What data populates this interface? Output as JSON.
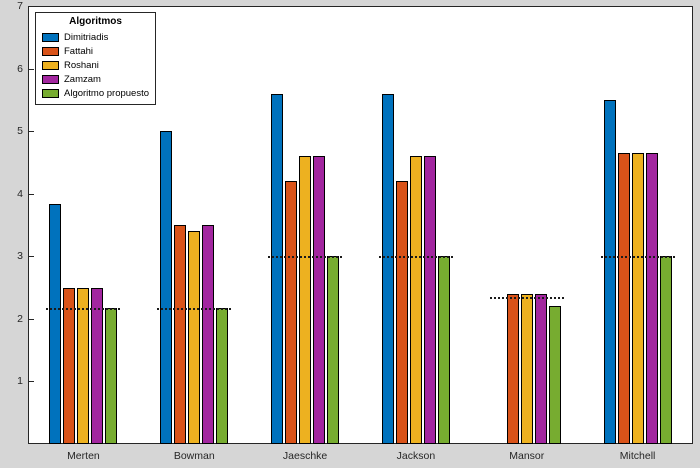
{
  "figure": {
    "background": "#d6d6d6",
    "plot_background": "#ffffff",
    "axis_color": "#262626"
  },
  "legend": {
    "title": "Algoritmos"
  },
  "chart_data": {
    "type": "bar",
    "title": "",
    "xlabel": "",
    "ylabel": "",
    "categories": [
      "Merten",
      "Bowman",
      "Jaeschke",
      "Jackson",
      "Mansor",
      "Mitchell"
    ],
    "series": [
      {
        "name": "Dimitriadis",
        "color": "#0072BD",
        "values": [
          3.83,
          5.0,
          5.6,
          5.6,
          0,
          5.5
        ]
      },
      {
        "name": "Fattahi",
        "color": "#D95319",
        "values": [
          2.5,
          3.5,
          4.2,
          4.2,
          2.4,
          4.65
        ]
      },
      {
        "name": "Roshani",
        "color": "#EDB120",
        "values": [
          2.5,
          3.4,
          4.6,
          4.6,
          2.4,
          4.65
        ]
      },
      {
        "name": "Zamzam",
        "color": "#A2269F",
        "values": [
          2.5,
          3.5,
          4.6,
          4.6,
          2.4,
          4.65
        ]
      },
      {
        "name": "Algoritmo propuesto",
        "color": "#77AC30",
        "values": [
          2.17,
          2.17,
          3.0,
          3.0,
          2.2,
          3.0
        ]
      }
    ],
    "reference_lines_per_category": [
      2.17,
      2.17,
      3.0,
      3.0,
      2.35,
      3.0
    ],
    "ylim": [
      0,
      7
    ],
    "yticks": [
      1,
      2,
      3,
      4,
      5,
      6,
      7
    ],
    "legend_position": "top-left",
    "grid": false
  }
}
